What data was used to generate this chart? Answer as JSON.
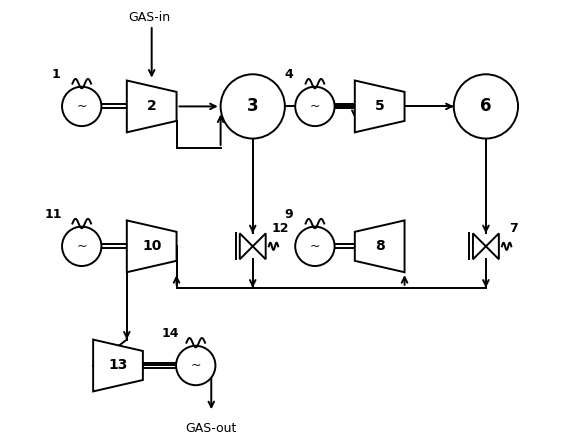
{
  "bg_color": "#ffffff",
  "line_color": "#000000",
  "figsize": [
    5.78,
    4.46
  ],
  "dpi": 100,
  "xlim": [
    0,
    10
  ],
  "ylim": [
    0,
    8.5
  ]
}
